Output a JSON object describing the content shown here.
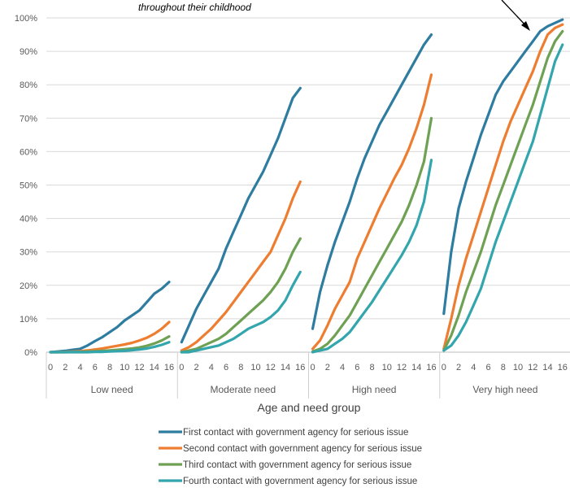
{
  "chart_data": {
    "type": "line",
    "xlabel": "Age and need group",
    "ages": [
      0,
      1,
      2,
      3,
      4,
      5,
      6,
      7,
      8,
      9,
      10,
      11,
      12,
      13,
      14,
      15,
      16
    ],
    "age_tick_labels": [
      "0",
      "2",
      "4",
      "6",
      "8",
      "10",
      "12",
      "14",
      "16"
    ],
    "y_tick_labels": [
      "0%",
      "10%",
      "20%",
      "30%",
      "40%",
      "50%",
      "60%",
      "70%",
      "80%",
      "90%",
      "100%"
    ],
    "ylim": [
      0,
      100
    ],
    "grid": true,
    "annotation": "throughout their childhood",
    "colors": [
      "#2e7ca0",
      "#ed7d31",
      "#6ea154",
      "#33a5ad"
    ],
    "groups": [
      {
        "name": "Low need",
        "series": [
          {
            "name": "First contact with government agency for serious issue",
            "values": [
              0,
              0.2,
              0.4,
              0.7,
              1,
              2,
              3.3,
              4.5,
              6,
              7.5,
              9.5,
              11,
              12.5,
              15,
              17.5,
              19,
              21
            ]
          },
          {
            "name": "Second contact with government agency for serious issue",
            "values": [
              0,
              0,
              0.1,
              0.2,
              0.3,
              0.5,
              0.8,
              1.1,
              1.5,
              1.9,
              2.3,
              2.8,
              3.5,
              4.3,
              5.5,
              7,
              9
            ]
          },
          {
            "name": "Third contact with government agency for serious issue",
            "values": [
              0,
              0,
              0,
              0.1,
              0.1,
              0.2,
              0.3,
              0.4,
              0.5,
              0.7,
              0.9,
              1.1,
              1.4,
              1.9,
              2.6,
              3.5,
              4.7
            ]
          },
          {
            "name": "Fourth contact with government agency for serious issue",
            "values": [
              0,
              0,
              0,
              0,
              0,
              0,
              0.1,
              0.1,
              0.2,
              0.3,
              0.4,
              0.6,
              0.8,
              1.1,
              1.6,
              2.2,
              3
            ]
          }
        ]
      },
      {
        "name": "Moderate need",
        "series": [
          {
            "name": "First contact with government agency for serious issue",
            "values": [
              3,
              8,
              13,
              17,
              21,
              25,
              31,
              36,
              41,
              46,
              50,
              54,
              59,
              64,
              70,
              76,
              79
            ]
          },
          {
            "name": "Second contact with government agency for serious issue",
            "values": [
              0.5,
              1.5,
              3,
              5,
              7,
              9.5,
              12,
              15,
              18,
              21,
              24,
              27,
              30,
              35,
              40,
              46,
              51
            ]
          },
          {
            "name": "Third contact with government agency for serious issue",
            "values": [
              0,
              0.5,
              1,
              2,
              3,
              4,
              5.5,
              7.5,
              9.5,
              11.5,
              13.5,
              15.5,
              18,
              21,
              25,
              30,
              34
            ]
          },
          {
            "name": "Fourth contact with government agency for serious issue",
            "values": [
              0,
              0,
              0.5,
              1,
              1.5,
              2,
              3,
              4,
              5.5,
              7,
              8,
              9,
              10.5,
              12.5,
              15.5,
              20,
              24
            ]
          }
        ]
      },
      {
        "name": "High need",
        "series": [
          {
            "name": "First contact with government agency for serious issue",
            "values": [
              7,
              18,
              26,
              33,
              39,
              45,
              52,
              58,
              63,
              68,
              72,
              76,
              80,
              84,
              88,
              92,
              95
            ]
          },
          {
            "name": "Second contact with government agency for serious issue",
            "values": [
              1,
              3.5,
              8,
              13,
              17,
              21,
              28,
              33,
              38,
              43,
              47.5,
              52,
              56,
              61,
              67,
              74,
              83
            ]
          },
          {
            "name": "Third contact with government agency for serious issue",
            "values": [
              0.2,
              1,
              2.5,
              5,
              8,
              11,
              15,
              19,
              23,
              27,
              31,
              35,
              39,
              44,
              50,
              57,
              70
            ]
          },
          {
            "name": "Fourth contact with government agency for serious issue",
            "values": [
              0,
              0.5,
              1,
              2.5,
              4,
              6,
              9,
              12,
              15,
              18.5,
              22,
              25.5,
              29,
              33,
              38,
              45,
              57.5
            ]
          }
        ]
      },
      {
        "name": "Very high need",
        "series": [
          {
            "name": "First contact with government agency for serious issue",
            "values": [
              11.5,
              30,
              43,
              51,
              58,
              65,
              71,
              77,
              81,
              84,
              87,
              90,
              93,
              96,
              97.5,
              98.5,
              99.5
            ]
          },
          {
            "name": "Second contact with government agency for serious issue",
            "values": [
              1,
              10,
              20,
              28,
              35,
              42,
              49,
              56,
              63,
              69,
              74,
              79,
              84,
              90,
              95,
              97,
              98
            ]
          },
          {
            "name": "Third contact with government agency for serious issue",
            "values": [
              0.5,
              5,
              11,
              18,
              24,
              30,
              37,
              44,
              50,
              56,
              62,
              68,
              74,
              81,
              88,
              93,
              96
            ]
          },
          {
            "name": "Fourth contact with government agency for serious issue",
            "values": [
              0.5,
              2,
              5,
              9,
              14,
              19,
              26,
              33,
              39,
              45,
              51,
              57,
              63,
              71,
              79,
              87,
              92
            ]
          }
        ]
      }
    ]
  }
}
